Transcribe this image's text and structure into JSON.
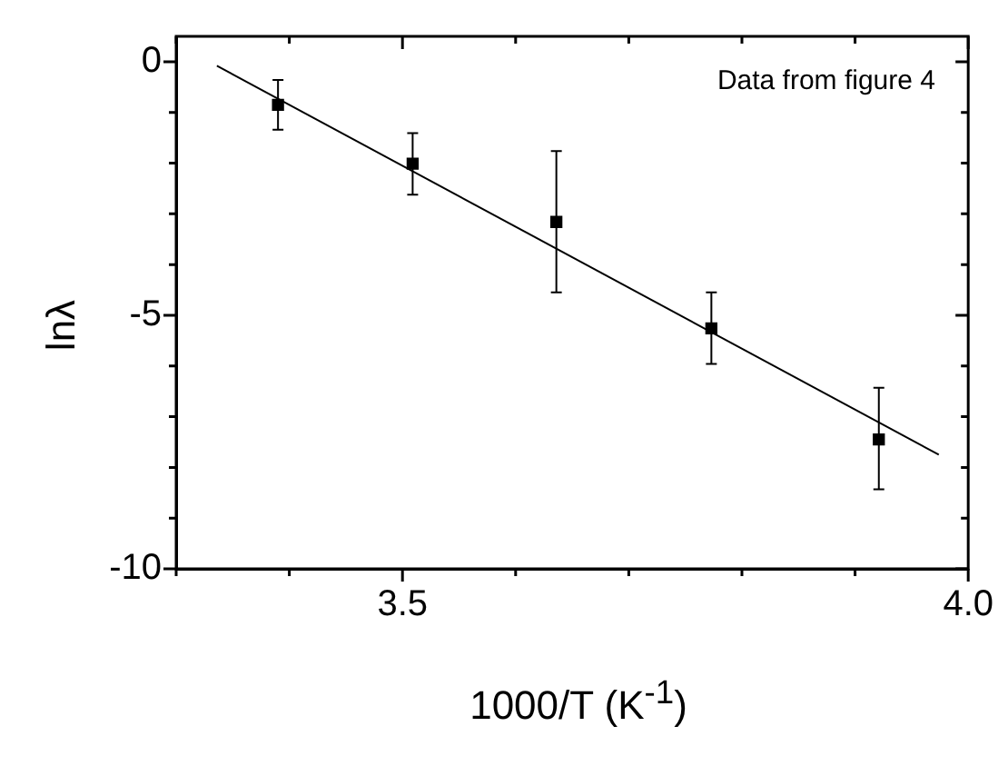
{
  "chart_data": {
    "type": "scatter",
    "xlabel": "1000/T (K$^{-1}$)",
    "ylabel": "lnλ",
    "annotations": [
      "Data from figure 4"
    ],
    "xlim": [
      3.3,
      4.0
    ],
    "xticks": [
      {
        "value": 3.3,
        "label": null
      },
      {
        "value": 3.4,
        "label": null
      },
      3.5,
      {
        "value": 3.6,
        "label": null
      },
      {
        "value": 3.7,
        "label": null
      },
      {
        "value": 3.8,
        "label": null
      },
      {
        "value": 3.9,
        "label": null
      },
      {
        "value": 4.0,
        "label": "4.0"
      }
    ],
    "ylim": [
      -10,
      0.5
    ],
    "yticks": [
      -10,
      {
        "value": -9,
        "label": null
      },
      {
        "value": -8,
        "label": null
      },
      {
        "value": -7,
        "label": null
      },
      {
        "value": -6,
        "label": null
      },
      -5,
      {
        "value": -4,
        "label": null
      },
      {
        "value": -3,
        "label": null
      },
      {
        "value": -2,
        "label": null
      },
      {
        "value": -1,
        "label": null
      },
      0
    ],
    "grid": false,
    "legend": false,
    "series": [
      {
        "color": "#000000",
        "marker": "square",
        "x": [
          3.39,
          3.509,
          3.636,
          3.773,
          3.921
        ],
        "values": [
          -0.85,
          -2.01,
          -3.16,
          -5.26,
          -7.45
        ],
        "errors": [
          [
            -1.34,
            -0.36
          ],
          [
            -2.62,
            -1.41
          ],
          [
            -4.55,
            -1.76
          ],
          [
            -5.96,
            -4.55
          ],
          [
            -8.43,
            -6.43
          ]
        ]
      },
      {
        "type": "line",
        "color": "#000000",
        "marker": "none",
        "line_style": "solid",
        "x": [
          3.336,
          3.974
        ],
        "values": [
          -0.08,
          -7.75
        ]
      }
    ]
  }
}
